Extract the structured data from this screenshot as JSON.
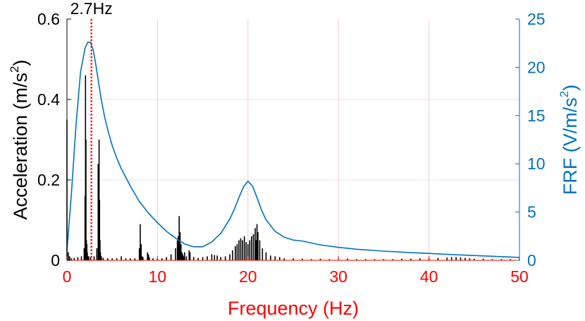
{
  "chart_data": {
    "type": "line",
    "title": "",
    "xlabel": "Frequency (Hz)",
    "ylabel_left": "Acceleration (m/s",
    "ylabel_left_sup": "2",
    "ylabel_left_tail": ")",
    "ylabel_right": "FRF (V/m/s",
    "ylabel_right_sup": "2",
    "ylabel_right_tail": ")",
    "xlim": [
      0,
      50
    ],
    "ylim_left": [
      0,
      0.6
    ],
    "ylim_right": [
      0,
      25
    ],
    "x_ticks": [
      "0",
      "10",
      "20",
      "30",
      "40",
      "50"
    ],
    "y_left_ticks": [
      "0",
      "0.2",
      "0.4",
      "0.6"
    ],
    "y_right_ticks": [
      "0",
      "5",
      "10",
      "15",
      "20",
      "25"
    ],
    "grid": true,
    "colors": {
      "x_axis": "#ff0000",
      "left_axis": "#000000",
      "right_axis": "#0072bd",
      "frf_line": "#0072bd",
      "spectrum": "#000000",
      "marker": "#ff0000",
      "grid": "#f3c9d0"
    },
    "annotation": {
      "label": "2.7Hz",
      "x": 2.7
    },
    "series": [
      {
        "axis": "left",
        "kind": "stem",
        "x": [
          0.0,
          0.15,
          0.3,
          0.5,
          0.8,
          1.2,
          1.6,
          1.9,
          2.0,
          2.05,
          2.1,
          2.15,
          2.2,
          2.25,
          2.3,
          2.4,
          2.6,
          3.0,
          3.3,
          3.45,
          3.55,
          3.6,
          3.65,
          3.7,
          3.8,
          4.0,
          4.5,
          5.0,
          5.5,
          6.0,
          6.5,
          7.0,
          7.5,
          8.0,
          8.1,
          8.2,
          8.3,
          8.4,
          8.9,
          9.0,
          9.1,
          9.5,
          10.0,
          10.5,
          11.0,
          11.5,
          12.0,
          12.2,
          12.3,
          12.4,
          12.5,
          12.6,
          12.7,
          12.8,
          12.9,
          13.0,
          13.2,
          13.5,
          13.6,
          14.0,
          14.5,
          15.0,
          15.5,
          16.0,
          16.3,
          16.6,
          17.0,
          17.5,
          18.0,
          18.3,
          18.6,
          18.8,
          19.0,
          19.2,
          19.4,
          19.6,
          19.8,
          20.0,
          20.2,
          20.4,
          20.6,
          20.8,
          20.9,
          21.0,
          21.1,
          21.3,
          21.6,
          22.0,
          22.5,
          23.0,
          23.5,
          24.0,
          25.0,
          26.0,
          27.0,
          28.0,
          29.0,
          30.0,
          31.0,
          32.0,
          33.0,
          34.0,
          35.0,
          36.0,
          37.0,
          38.0,
          39.0,
          40.0,
          41.0,
          42.0,
          42.5,
          43.0,
          43.5,
          44.0,
          44.5,
          45.0,
          46.0,
          47.0,
          48.0,
          49.0,
          50.0
        ],
        "values": [
          0.35,
          0.02,
          0.01,
          0.005,
          0.006,
          0.008,
          0.01,
          0.03,
          0.16,
          0.46,
          0.3,
          0.05,
          0.04,
          0.02,
          0.01,
          0.01,
          0.008,
          0.01,
          0.03,
          0.24,
          0.3,
          0.15,
          0.05,
          0.02,
          0.01,
          0.006,
          0.005,
          0.005,
          0.005,
          0.01,
          0.005,
          0.005,
          0.005,
          0.03,
          0.09,
          0.04,
          0.01,
          0.008,
          0.02,
          0.015,
          0.008,
          0.005,
          0.004,
          0.005,
          0.008,
          0.015,
          0.03,
          0.05,
          0.06,
          0.11,
          0.07,
          0.04,
          0.02,
          0.015,
          0.01,
          0.02,
          0.01,
          0.025,
          0.02,
          0.008,
          0.006,
          0.008,
          0.01,
          0.015,
          0.013,
          0.012,
          0.008,
          0.01,
          0.015,
          0.025,
          0.035,
          0.04,
          0.05,
          0.055,
          0.05,
          0.06,
          0.045,
          0.04,
          0.05,
          0.06,
          0.065,
          0.08,
          0.05,
          0.09,
          0.07,
          0.05,
          0.03,
          0.02,
          0.012,
          0.01,
          0.008,
          0.005,
          0.005,
          0.004,
          0.003,
          0.004,
          0.003,
          0.003,
          0.004,
          0.003,
          0.003,
          0.003,
          0.003,
          0.003,
          0.004,
          0.004,
          0.005,
          0.005,
          0.006,
          0.007,
          0.008,
          0.008,
          0.007,
          0.006,
          0.005,
          0.004,
          0.004,
          0.003,
          0.003,
          0.003,
          0.003
        ]
      },
      {
        "axis": "right",
        "kind": "line",
        "x": [
          0,
          0.5,
          1.0,
          1.5,
          2.0,
          2.3,
          2.6,
          2.9,
          3.2,
          3.5,
          3.8,
          4.2,
          4.6,
          5.0,
          5.5,
          6.0,
          7.0,
          8.0,
          9.0,
          10.0,
          11.0,
          12.0,
          13.0,
          14.0,
          15.0,
          16.0,
          17.0,
          18.0,
          18.5,
          19.0,
          19.5,
          20.0,
          20.5,
          21.0,
          21.5,
          22.0,
          23.0,
          24.0,
          25.0,
          26.0,
          27.0,
          28.0,
          30.0,
          32.0,
          35.0,
          38.0,
          40.0,
          42.0,
          45.0,
          48.0,
          50.0
        ],
        "values": [
          1.0,
          7.0,
          14.0,
          19.5,
          22.0,
          22.6,
          22.6,
          21.8,
          20.2,
          18.4,
          16.6,
          14.7,
          13.2,
          11.9,
          10.6,
          9.5,
          7.7,
          6.1,
          4.9,
          3.9,
          3.0,
          2.3,
          1.7,
          1.4,
          1.4,
          1.9,
          2.8,
          4.3,
          5.3,
          6.5,
          7.6,
          8.2,
          7.7,
          6.5,
          5.2,
          4.2,
          3.0,
          2.4,
          2.1,
          2.0,
          1.8,
          1.6,
          1.35,
          1.15,
          0.95,
          0.8,
          0.72,
          0.62,
          0.5,
          0.38,
          0.3
        ]
      }
    ]
  }
}
